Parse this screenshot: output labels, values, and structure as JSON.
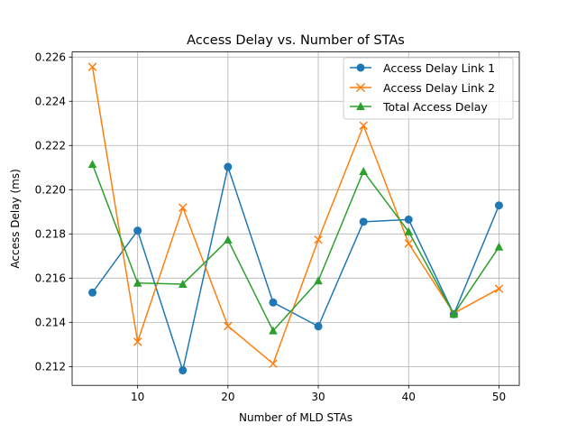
{
  "chart_data": {
    "type": "line",
    "title": "Access Delay vs. Number of STAs",
    "xlabel": "Number of MLD STAs",
    "ylabel": "Access Delay (ms)",
    "x": [
      5,
      10,
      15,
      20,
      25,
      30,
      35,
      40,
      45,
      50
    ],
    "xlim": [
      2.75,
      52.25
    ],
    "ylim": [
      0.21115,
      0.22623
    ],
    "xticks": [
      "10",
      "20",
      "30",
      "40",
      "50"
    ],
    "yticks": [
      "0.212",
      "0.214",
      "0.216",
      "0.218",
      "0.220",
      "0.222",
      "0.224",
      "0.226"
    ],
    "grid": true,
    "legend_position": "top-right",
    "series": [
      {
        "name": "Access Delay Link 1",
        "color": "#1f77b4",
        "marker": "circle",
        "values": [
          0.21535,
          0.21815,
          0.21183,
          0.22103,
          0.2149,
          0.21382,
          0.21855,
          0.21865,
          0.21437,
          0.21929
        ]
      },
      {
        "name": "Access Delay Link 2",
        "color": "#ff7f0e",
        "marker": "x",
        "values": [
          0.22555,
          0.21312,
          0.21919,
          0.21383,
          0.21213,
          0.21774,
          0.2229,
          0.21757,
          0.21441,
          0.21552
        ]
      },
      {
        "name": "Total Access Delay",
        "color": "#2ca02c",
        "marker": "triangle",
        "values": [
          0.22115,
          0.21578,
          0.21573,
          0.21773,
          0.21362,
          0.21588,
          0.22083,
          0.2181,
          0.21437,
          0.21741
        ]
      }
    ]
  }
}
